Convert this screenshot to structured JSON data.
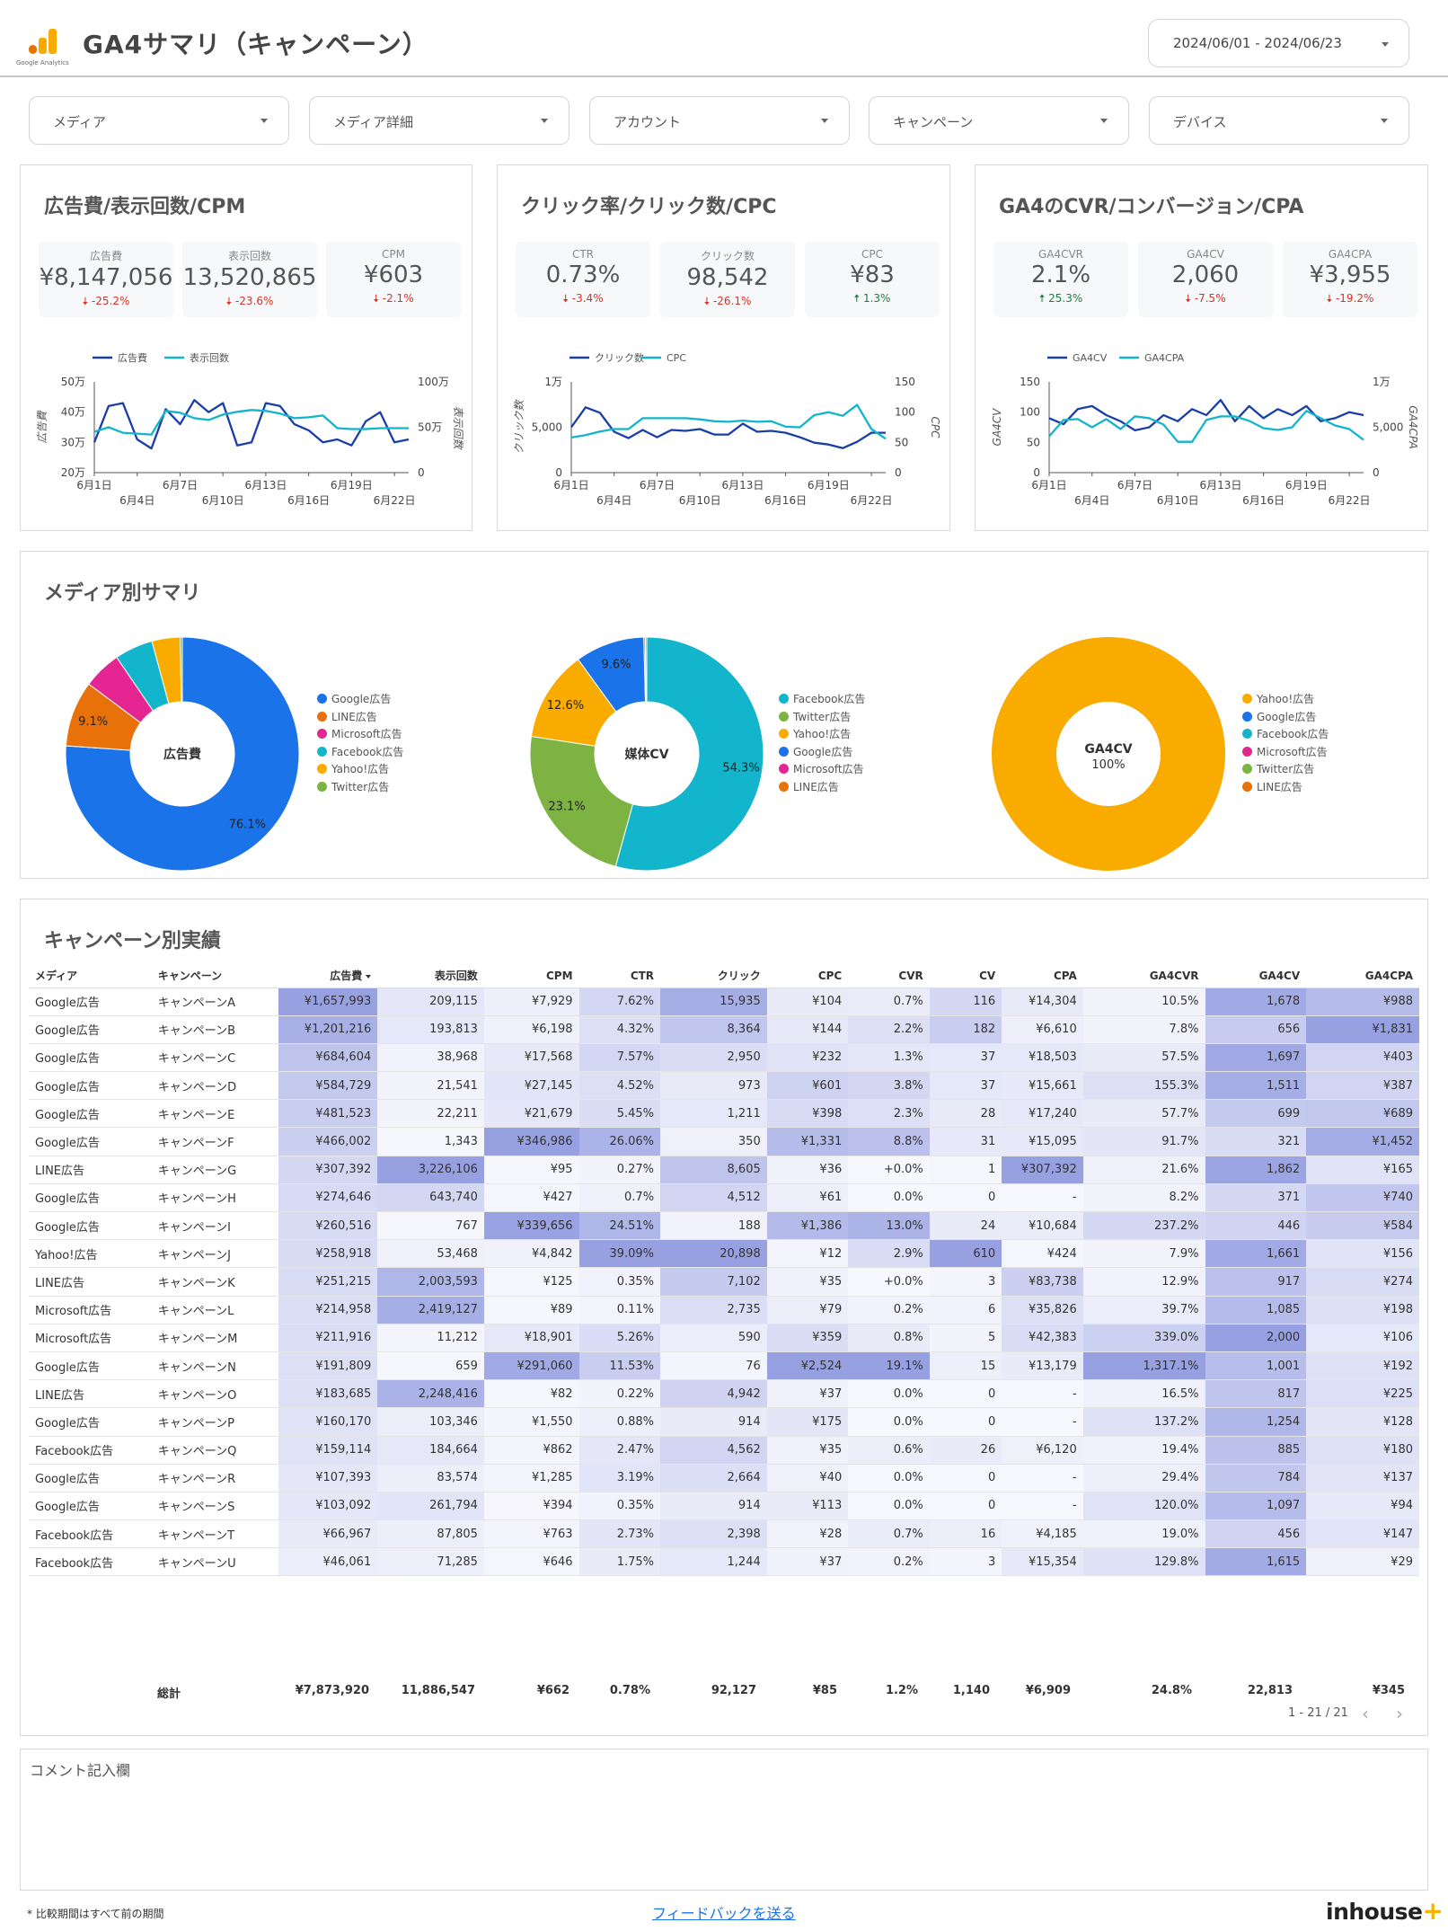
{
  "header": {
    "title": "GA4サマリ（キャンペーン）",
    "logo_text": "Google Analytics",
    "date_range": "2024/06/01 - 2024/06/23"
  },
  "filters": [
    "メディア",
    "メディア詳細",
    "アカウント",
    "キャンペーン",
    "デバイス"
  ],
  "panels": {
    "cost": {
      "title": "広告費/表示回数/CPM",
      "kpis": [
        {
          "label": "広告費",
          "value": "¥8,147,056",
          "change": "-25.2%",
          "dir": "down"
        },
        {
          "label": "表示回数",
          "value": "13,520,865",
          "change": "-23.6%",
          "dir": "down"
        },
        {
          "label": "CPM",
          "value": "¥603",
          "change": "-2.1%",
          "dir": "down"
        }
      ],
      "legend": [
        "広告費",
        "表示回数"
      ],
      "y_left_label": "広告費",
      "y_right_label": "表示回数",
      "y_left_ticks": [
        "20万",
        "30万",
        "40万",
        "50万"
      ],
      "y_right_ticks": [
        "0",
        "50万",
        "100万"
      ]
    },
    "click": {
      "title": "クリック率/クリック数/CPC",
      "kpis": [
        {
          "label": "CTR",
          "value": "0.73%",
          "change": "-3.4%",
          "dir": "down"
        },
        {
          "label": "クリック数",
          "value": "98,542",
          "change": "-26.1%",
          "dir": "down"
        },
        {
          "label": "CPC",
          "value": "¥83",
          "change": "1.3%",
          "dir": "up"
        }
      ],
      "legend": [
        "クリック数",
        "CPC"
      ],
      "y_left_label": "クリック数",
      "y_right_label": "CPC",
      "y_left_ticks": [
        "0",
        "5,000",
        "1万"
      ],
      "y_right_ticks": [
        "0",
        "50",
        "100",
        "150"
      ]
    },
    "conv": {
      "title": "GA4のCVR/コンバージョン/CPA",
      "kpis": [
        {
          "label": "GA4CVR",
          "value": "2.1%",
          "change": "25.3%",
          "dir": "up"
        },
        {
          "label": "GA4CV",
          "value": "2,060",
          "change": "-7.5%",
          "dir": "down"
        },
        {
          "label": "GA4CPA",
          "value": "¥3,955",
          "change": "-19.2%",
          "dir": "down"
        }
      ],
      "legend": [
        "GA4CV",
        "GA4CPA"
      ],
      "y_left_label": "GA4CV",
      "y_right_label": "GA4CPA",
      "y_left_ticks": [
        "0",
        "50",
        "100",
        "150"
      ],
      "y_right_ticks": [
        "0",
        "5,000",
        "1万"
      ]
    },
    "x_ticks_top": [
      "6月1日",
      "6月7日",
      "6月13日",
      "6月19日"
    ],
    "x_ticks_bottom": [
      "6月4日",
      "6月10日",
      "6月16日",
      "6月22日"
    ]
  },
  "media_summary": {
    "title": "メディア別サマリ"
  },
  "campaign_table": {
    "title": "キャンペーン別実績",
    "columns": [
      "メディア",
      "キャンペーン",
      "広告費",
      "表示回数",
      "CPM",
      "CTR",
      "クリック",
      "CPC",
      "CVR",
      "CV",
      "CPA",
      "GA4CVR",
      "GA4CV",
      "GA4CPA"
    ],
    "rows": [
      [
        "Google広告",
        "キャンペーンA",
        "¥1,657,993",
        "209,115",
        "¥7,929",
        "7.62%",
        "15,935",
        "¥104",
        "0.7%",
        "116",
        "¥14,304",
        "10.5%",
        "1,678",
        "¥988"
      ],
      [
        "Google広告",
        "キャンペーンB",
        "¥1,201,216",
        "193,813",
        "¥6,198",
        "4.32%",
        "8,364",
        "¥144",
        "2.2%",
        "182",
        "¥6,610",
        "7.8%",
        "656",
        "¥1,831"
      ],
      [
        "Google広告",
        "キャンペーンC",
        "¥684,604",
        "38,968",
        "¥17,568",
        "7.57%",
        "2,950",
        "¥232",
        "1.3%",
        "37",
        "¥18,503",
        "57.5%",
        "1,697",
        "¥403"
      ],
      [
        "Google広告",
        "キャンペーンD",
        "¥584,729",
        "21,541",
        "¥27,145",
        "4.52%",
        "973",
        "¥601",
        "3.8%",
        "37",
        "¥15,661",
        "155.3%",
        "1,511",
        "¥387"
      ],
      [
        "Google広告",
        "キャンペーンE",
        "¥481,523",
        "22,211",
        "¥21,679",
        "5.45%",
        "1,211",
        "¥398",
        "2.3%",
        "28",
        "¥17,240",
        "57.7%",
        "699",
        "¥689"
      ],
      [
        "Google広告",
        "キャンペーンF",
        "¥466,002",
        "1,343",
        "¥346,986",
        "26.06%",
        "350",
        "¥1,331",
        "8.8%",
        "31",
        "¥15,095",
        "91.7%",
        "321",
        "¥1,452"
      ],
      [
        "LINE広告",
        "キャンペーンG",
        "¥307,392",
        "3,226,106",
        "¥95",
        "0.27%",
        "8,605",
        "¥36",
        "+0.0%",
        "1",
        "¥307,392",
        "21.6%",
        "1,862",
        "¥165"
      ],
      [
        "Google広告",
        "キャンペーンH",
        "¥274,646",
        "643,740",
        "¥427",
        "0.7%",
        "4,512",
        "¥61",
        "0.0%",
        "0",
        "-",
        "8.2%",
        "371",
        "¥740"
      ],
      [
        "Google広告",
        "キャンペーンI",
        "¥260,516",
        "767",
        "¥339,656",
        "24.51%",
        "188",
        "¥1,386",
        "13.0%",
        "24",
        "¥10,684",
        "237.2%",
        "446",
        "¥584"
      ],
      [
        "Yahoo!広告",
        "キャンペーンJ",
        "¥258,918",
        "53,468",
        "¥4,842",
        "39.09%",
        "20,898",
        "¥12",
        "2.9%",
        "610",
        "¥424",
        "7.9%",
        "1,661",
        "¥156"
      ],
      [
        "LINE広告",
        "キャンペーンK",
        "¥251,215",
        "2,003,593",
        "¥125",
        "0.35%",
        "7,102",
        "¥35",
        "+0.0%",
        "3",
        "¥83,738",
        "12.9%",
        "917",
        "¥274"
      ],
      [
        "Microsoft広告",
        "キャンペーンL",
        "¥214,958",
        "2,419,127",
        "¥89",
        "0.11%",
        "2,735",
        "¥79",
        "0.2%",
        "6",
        "¥35,826",
        "39.7%",
        "1,085",
        "¥198"
      ],
      [
        "Microsoft広告",
        "キャンペーンM",
        "¥211,916",
        "11,212",
        "¥18,901",
        "5.26%",
        "590",
        "¥359",
        "0.8%",
        "5",
        "¥42,383",
        "339.0%",
        "2,000",
        "¥106"
      ],
      [
        "Google広告",
        "キャンペーンN",
        "¥191,809",
        "659",
        "¥291,060",
        "11.53%",
        "76",
        "¥2,524",
        "19.1%",
        "15",
        "¥13,179",
        "1,317.1%",
        "1,001",
        "¥192"
      ],
      [
        "LINE広告",
        "キャンペーンO",
        "¥183,685",
        "2,248,416",
        "¥82",
        "0.22%",
        "4,942",
        "¥37",
        "0.0%",
        "0",
        "-",
        "16.5%",
        "817",
        "¥225"
      ],
      [
        "Google広告",
        "キャンペーンP",
        "¥160,170",
        "103,346",
        "¥1,550",
        "0.88%",
        "914",
        "¥175",
        "0.0%",
        "0",
        "-",
        "137.2%",
        "1,254",
        "¥128"
      ],
      [
        "Facebook広告",
        "キャンペーンQ",
        "¥159,114",
        "184,664",
        "¥862",
        "2.47%",
        "4,562",
        "¥35",
        "0.6%",
        "26",
        "¥6,120",
        "19.4%",
        "885",
        "¥180"
      ],
      [
        "Google広告",
        "キャンペーンR",
        "¥107,393",
        "83,574",
        "¥1,285",
        "3.19%",
        "2,664",
        "¥40",
        "0.0%",
        "0",
        "-",
        "29.4%",
        "784",
        "¥137"
      ],
      [
        "Google広告",
        "キャンペーンS",
        "¥103,092",
        "261,794",
        "¥394",
        "0.35%",
        "914",
        "¥113",
        "0.0%",
        "0",
        "-",
        "120.0%",
        "1,097",
        "¥94"
      ],
      [
        "Facebook広告",
        "キャンペーンT",
        "¥66,967",
        "87,805",
        "¥763",
        "2.73%",
        "2,398",
        "¥28",
        "0.7%",
        "16",
        "¥4,185",
        "19.0%",
        "456",
        "¥147"
      ],
      [
        "Facebook広告",
        "キャンペーンU",
        "¥46,061",
        "71,285",
        "¥646",
        "1.75%",
        "1,244",
        "¥37",
        "0.2%",
        "3",
        "¥15,354",
        "129.8%",
        "1,615",
        "¥29"
      ]
    ],
    "totals": [
      "総計",
      "¥7,873,920",
      "11,886,547",
      "¥662",
      "0.78%",
      "92,127",
      "¥85",
      "1.2%",
      "1,140",
      "¥6,909",
      "24.8%",
      "22,813",
      "¥345"
    ],
    "pagination": "1 - 21 / 21"
  },
  "comment": {
    "title": "コメント記入欄"
  },
  "footer": {
    "note": "* 比較期間はすべて前の期間",
    "feedback": "フィードバックを送る",
    "brand": "inhouse",
    "brand_plus": "+"
  },
  "colors": {
    "line_dark": "#1a3ea8",
    "line_teal": "#12b5cb",
    "heat": "#c5cbf0",
    "google": "#1a73e8",
    "line_ad": "#e8710a",
    "microsoft": "#e52592",
    "facebook": "#12b5cb",
    "yahoo": "#f9ab00",
    "twitter": "#7cb342"
  },
  "chart_data": [
    {
      "type": "line",
      "title": "広告費/表示回数/CPM",
      "x": [
        "6月1日",
        "6月2日",
        "6月3日",
        "6月4日",
        "6月5日",
        "6月6日",
        "6月7日",
        "6月8日",
        "6月9日",
        "6月10日",
        "6月11日",
        "6月12日",
        "6月13日",
        "6月14日",
        "6月15日",
        "6月16日",
        "6月17日",
        "6月18日",
        "6月19日",
        "6月20日",
        "6月21日",
        "6月22日",
        "6月23日"
      ],
      "series": [
        {
          "name": "広告費",
          "axis": "left",
          "values": [
            30,
            42,
            43,
            31,
            28,
            41,
            36,
            44,
            40,
            43,
            29,
            30,
            43,
            42,
            36,
            34,
            30,
            31,
            29,
            37,
            40,
            30,
            31
          ]
        },
        {
          "name": "表示回数",
          "axis": "right",
          "values": [
            45,
            50,
            44,
            43,
            42,
            68,
            66,
            60,
            58,
            64,
            67,
            69,
            68,
            65,
            60,
            61,
            63,
            49,
            48,
            48,
            49,
            49,
            49
          ]
        }
      ],
      "ylim_left": [
        20,
        50
      ],
      "ylim_right": [
        0,
        100
      ],
      "ylabel_left": "広告費",
      "ylabel_right": "表示回数"
    },
    {
      "type": "line",
      "title": "クリック率/クリック数/CPC",
      "x": [
        "6月1日",
        "6月2日",
        "6月3日",
        "6月4日",
        "6月5日",
        "6月6日",
        "6月7日",
        "6月8日",
        "6月9日",
        "6月10日",
        "6月11日",
        "6月12日",
        "6月13日",
        "6月14日",
        "6月15日",
        "6月16日",
        "6月17日",
        "6月18日",
        "6月19日",
        "6月20日",
        "6月21日",
        "6月22日",
        "6月23日"
      ],
      "series": [
        {
          "name": "クリック数",
          "axis": "left",
          "values": [
            5000,
            7200,
            6600,
            4500,
            3800,
            4700,
            3900,
            4700,
            4600,
            4800,
            4200,
            4200,
            5400,
            4500,
            4600,
            4400,
            3900,
            3300,
            3100,
            2700,
            3400,
            4400,
            4400
          ]
        },
        {
          "name": "CPC",
          "axis": "right",
          "values": [
            58,
            62,
            68,
            72,
            72,
            90,
            90,
            90,
            90,
            88,
            85,
            84,
            86,
            84,
            85,
            76,
            75,
            95,
            100,
            94,
            112,
            72,
            56
          ]
        }
      ],
      "ylim_left": [
        0,
        10000
      ],
      "ylim_right": [
        0,
        150
      ],
      "ylabel_left": "クリック数",
      "ylabel_right": "CPC"
    },
    {
      "type": "line",
      "title": "GA4のCVR/コンバージョン/CPA",
      "x": [
        "6月1日",
        "6月2日",
        "6月3日",
        "6月4日",
        "6月5日",
        "6月6日",
        "6月7日",
        "6月8日",
        "6月9日",
        "6月10日",
        "6月11日",
        "6月12日",
        "6月13日",
        "6月14日",
        "6月15日",
        "6月16日",
        "6月17日",
        "6月18日",
        "6月19日",
        "6月20日",
        "6月21日",
        "6月22日",
        "6月23日"
      ],
      "series": [
        {
          "name": "GA4CV",
          "axis": "left",
          "values": [
            90,
            80,
            105,
            110,
            95,
            85,
            70,
            75,
            95,
            85,
            105,
            95,
            120,
            85,
            110,
            90,
            105,
            95,
            110,
            85,
            90,
            100,
            95
          ]
        },
        {
          "name": "GA4CPA",
          "axis": "right",
          "values": [
            4000,
            5800,
            5900,
            5000,
            5900,
            4800,
            6200,
            6000,
            5300,
            3400,
            3400,
            5800,
            6200,
            6200,
            5700,
            4900,
            4700,
            5000,
            6800,
            6000,
            5200,
            4800,
            3600
          ]
        }
      ],
      "ylim_left": [
        0,
        150
      ],
      "ylim_right": [
        0,
        10000
      ],
      "ylabel_left": "GA4CV",
      "ylabel_right": "GA4CPA"
    },
    {
      "type": "pie",
      "title": "広告費",
      "categories": [
        "Google広告",
        "LINE広告",
        "Microsoft広告",
        "Facebook広告",
        "Yahoo!広告",
        "Twitter広告"
      ],
      "values": [
        76.1,
        9.1,
        5.3,
        5.3,
        3.9,
        0.3
      ],
      "labels_shown": [
        "76.1%",
        "9.1%"
      ]
    },
    {
      "type": "pie",
      "title": "媒体CV",
      "categories": [
        "Facebook広告",
        "Twitter広告",
        "Yahoo!広告",
        "Google広告",
        "Microsoft広告",
        "LINE広告"
      ],
      "values": [
        54.3,
        23.1,
        12.6,
        9.6,
        0.2,
        0.2
      ],
      "labels_shown": [
        "54.3%",
        "23.1%",
        "12.6%",
        "9.6%"
      ]
    },
    {
      "type": "pie",
      "title": "GA4CV",
      "center_value": "100%",
      "categories": [
        "Yahoo!広告",
        "Google広告",
        "Facebook広告",
        "Microsoft広告",
        "Twitter広告",
        "LINE広告"
      ],
      "values": [
        100,
        0,
        0,
        0,
        0,
        0
      ]
    }
  ]
}
